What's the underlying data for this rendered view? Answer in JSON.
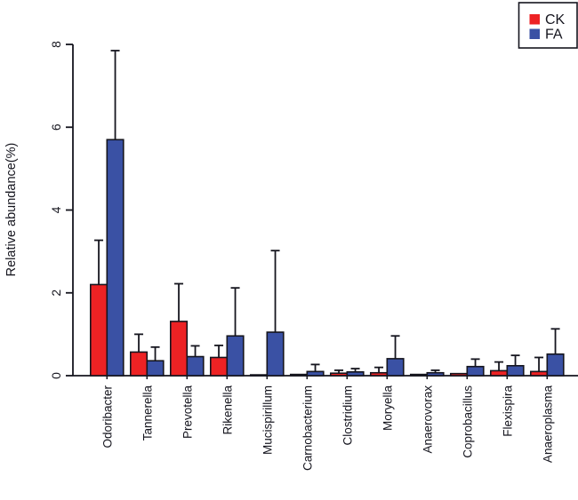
{
  "chart_data": {
    "type": "bar",
    "title": "",
    "xlabel": "",
    "ylabel": "Relative abundance(%)",
    "ylim": [
      0,
      8
    ],
    "yticks": [
      0,
      2,
      4,
      6,
      8
    ],
    "grid": false,
    "legend_position": "top-right",
    "error_bars": "upper whisker with top cap",
    "categories": [
      "Odoribacter",
      "Tannerella",
      "Prevotella",
      "Rikenella",
      "Mucispirillum",
      "Carnobacterium",
      "Clostridium",
      "Moryella",
      "Anaerovorax",
      "Coprobacillus",
      "Flexispira",
      "Anaeroplasma"
    ],
    "series": [
      {
        "name": "CK",
        "color": "#ed2224",
        "values": [
          2.2,
          0.57,
          1.31,
          0.44,
          0.02,
          0.03,
          0.06,
          0.07,
          0.03,
          0.05,
          0.12,
          0.1
        ],
        "error_tops": [
          3.27,
          1.0,
          2.22,
          0.73,
          null,
          null,
          0.13,
          0.2,
          null,
          null,
          0.33,
          0.44
        ]
      },
      {
        "name": "FA",
        "color": "#3a51a4",
        "values": [
          5.7,
          0.36,
          0.46,
          0.96,
          1.05,
          0.1,
          0.09,
          0.41,
          0.07,
          0.22,
          0.24,
          0.52
        ],
        "error_tops": [
          7.85,
          0.69,
          0.72,
          2.12,
          3.02,
          0.27,
          0.17,
          0.96,
          0.13,
          0.4,
          0.49,
          1.13
        ]
      }
    ]
  },
  "colors": {
    "axis": "#15151e",
    "bar_outline": "#15151e",
    "background": "#ffffff",
    "legend_border": "#15151e"
  }
}
